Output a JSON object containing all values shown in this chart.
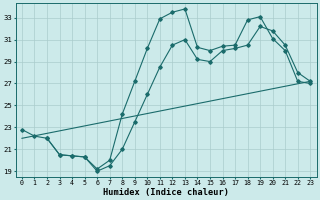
{
  "xlabel": "Humidex (Indice chaleur)",
  "bg_color": "#cceaea",
  "grid_color": "#aacccc",
  "line_color": "#1a6b6b",
  "xlim_min": -0.5,
  "xlim_max": 23.5,
  "ylim_min": 18.5,
  "ylim_max": 34.3,
  "yticks": [
    19,
    21,
    23,
    25,
    27,
    29,
    31,
    33
  ],
  "xticks": [
    0,
    1,
    2,
    3,
    4,
    5,
    6,
    7,
    8,
    9,
    10,
    11,
    12,
    13,
    14,
    15,
    16,
    17,
    18,
    19,
    20,
    21,
    22,
    23
  ],
  "line1_x": [
    0,
    1,
    2,
    3,
    4,
    5,
    6,
    7,
    8,
    9,
    10,
    11,
    12,
    13,
    14,
    15,
    16,
    17,
    18,
    19,
    20,
    21,
    22,
    23
  ],
  "line1_y": [
    22.8,
    22.2,
    22.0,
    20.5,
    20.4,
    20.3,
    19.2,
    20.0,
    24.2,
    27.2,
    30.2,
    32.9,
    33.5,
    33.8,
    30.3,
    30.0,
    30.4,
    30.5,
    32.8,
    33.1,
    31.1,
    30.0,
    27.2,
    27.0
  ],
  "line2_x": [
    2,
    3,
    4,
    5,
    6,
    7,
    8,
    9,
    10,
    11,
    12,
    13,
    14,
    15,
    16,
    17,
    18,
    19,
    20,
    21,
    22,
    23
  ],
  "line2_y": [
    22.0,
    20.5,
    20.4,
    20.3,
    19.0,
    19.5,
    21.0,
    23.5,
    26.0,
    28.5,
    30.5,
    31.0,
    29.2,
    29.0,
    30.0,
    30.2,
    30.5,
    32.2,
    31.8,
    30.5,
    28.0,
    27.2
  ],
  "line3_x": [
    0,
    23
  ],
  "line3_y": [
    22.0,
    27.2
  ]
}
